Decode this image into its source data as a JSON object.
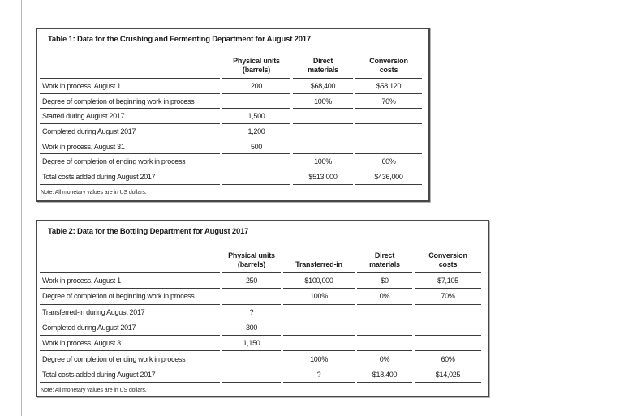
{
  "page": {
    "background": "#ffffff",
    "rule_color": "#3c3c3c",
    "border_color": "#474747"
  },
  "tables": [
    {
      "title": "Table 1: Data for the Crushing and Fermenting Department for August 2017",
      "note": "Note: All monetary values are in US dollars.",
      "columns": [
        {
          "l1": "",
          "l2": ""
        },
        {
          "l1": "Physical units",
          "l2": "(barrels)"
        },
        {
          "l1": "Direct",
          "l2": "materials"
        },
        {
          "l1": "Conversion",
          "l2": "costs"
        }
      ],
      "rows": [
        {
          "cells": [
            "Work in process, August 1",
            "200",
            "$68,400",
            "$58,120"
          ]
        },
        {
          "cells": [
            "Degree of completion of beginning work in process",
            "",
            "100%",
            "70%"
          ]
        },
        {
          "cells": [
            "Started during August 2017",
            "1,500",
            "",
            ""
          ]
        },
        {
          "cells": [
            "Completed during August 2017",
            "1,200",
            "",
            ""
          ]
        },
        {
          "cells": [
            "Work in process, August 31",
            "500",
            "",
            ""
          ]
        },
        {
          "cells": [
            "Degree of completion of ending work in process",
            "",
            "100%",
            "60%"
          ]
        },
        {
          "cells": [
            "Total costs added during August 2017",
            "",
            "$513,000",
            "$436,000"
          ]
        }
      ]
    },
    {
      "title": "Table 2: Data for the Bottling Department for August 2017",
      "note": "Note: All monetary values are in US dollars.",
      "columns": [
        {
          "l1": "",
          "l2": ""
        },
        {
          "l1": "Physical units",
          "l2": "(barrels)"
        },
        {
          "l1": "",
          "l2": "Transferred-in"
        },
        {
          "l1": "Direct",
          "l2": "materials"
        },
        {
          "l1": "Conversion",
          "l2": "costs"
        }
      ],
      "rows": [
        {
          "cells": [
            "Work in process, August 1",
            "250",
            "$100,000",
            "$0",
            "$7,105"
          ]
        },
        {
          "cells": [
            "Degree of completion of beginning work in process",
            "",
            "100%",
            "0%",
            "70%"
          ]
        },
        {
          "cells": [
            "Transferred-in during August 2017",
            "?",
            "",
            "",
            ""
          ]
        },
        {
          "cells": [
            "Completed during August 2017",
            "300",
            "",
            "",
            ""
          ]
        },
        {
          "cells": [
            "Work in process, August 31",
            "1,150",
            "",
            "",
            ""
          ]
        },
        {
          "cells": [
            "Degree of completion of ending work in process",
            "",
            "100%",
            "0%",
            "60%"
          ]
        },
        {
          "cells": [
            "Total costs added during August 2017",
            "",
            "?",
            "$18,400",
            "$14,025"
          ]
        }
      ]
    }
  ]
}
